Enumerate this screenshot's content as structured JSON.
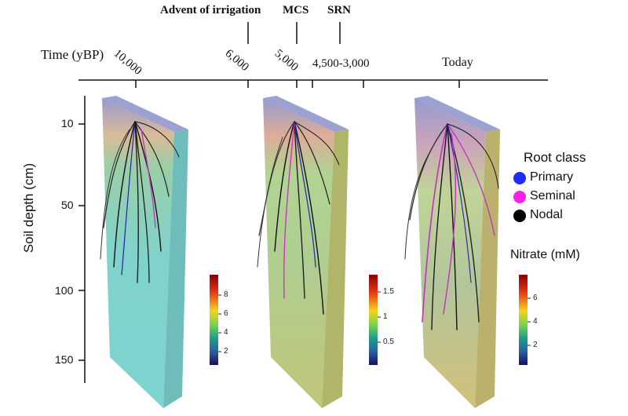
{
  "events": {
    "irrigation": "Advent of irrigation",
    "mcs": "MCS",
    "srn": "SRN"
  },
  "time_axis": {
    "label": "Time (yBP)",
    "ticks": [
      "10,000",
      "6,000",
      "5,000",
      "4,500-3,000",
      "Today"
    ]
  },
  "depth_axis": {
    "label": "Soil depth (cm)",
    "ticks": [
      "10",
      "50",
      "100",
      "150"
    ]
  },
  "legend": {
    "title": "Root class",
    "items": [
      {
        "label": "Primary",
        "color": "#1f2bff"
      },
      {
        "label": "Seminal",
        "color": "#ff1fe6"
      },
      {
        "label": "Nodal",
        "color": "#000000"
      }
    ]
  },
  "nitrate_title": "Nitrate (mM)",
  "colorbars": [
    {
      "ticks": [
        "8",
        "6",
        "4",
        "2"
      ]
    },
    {
      "ticks": [
        "1.5",
        "1",
        "0.5"
      ]
    },
    {
      "ticks": [
        "6",
        "4",
        "2"
      ]
    }
  ],
  "colors": {
    "axis": "#111111",
    "block_top": "#7f86c8",
    "block_face_1": "#6fcfca",
    "block_face_2": "#b5c46a",
    "block_face_3": "#c9b86a"
  }
}
